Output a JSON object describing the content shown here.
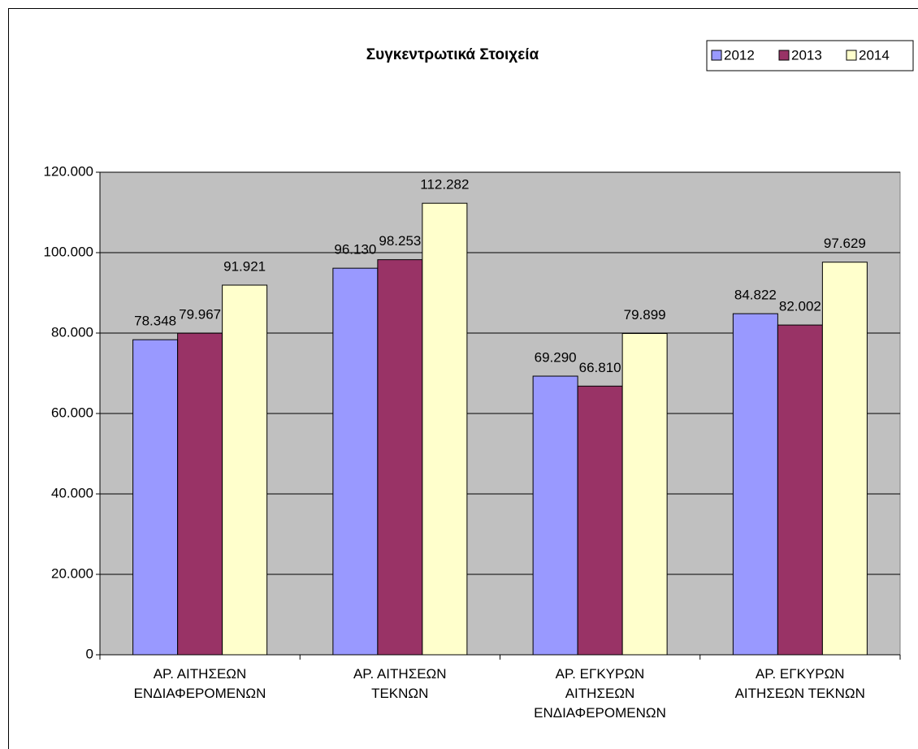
{
  "chart_data": {
    "type": "bar",
    "title": "Συγκεντρωτικά Στοιχεία",
    "categories": [
      "ΑΡ. ΑΙΤΗΣΕΩΝ\nΕΝΔΙΑΦΕΡΟΜΕΝΩΝ",
      "ΑΡ. ΑΙΤΗΣΕΩΝ\nΤΕΚΝΩΝ",
      "ΑΡ. ΕΓΚΥΡΩΝ\nΑΙΤΗΣΕΩΝ\nΕΝΔΙΑΦΕΡΟΜΕΝΩΝ",
      "ΑΡ. ΕΓΚΥΡΩΝ\nΑΙΤΗΣΕΩΝ ΤΕΚΝΩΝ"
    ],
    "series": [
      {
        "name": "2012",
        "color": "#9999ff",
        "values": [
          78348,
          96130,
          69290,
          84822
        ],
        "value_labels": [
          "78.348",
          "96.130",
          "69.290",
          "84.822"
        ]
      },
      {
        "name": "2013",
        "color": "#993366",
        "values": [
          79967,
          98253,
          66810,
          82002
        ],
        "value_labels": [
          "79.967",
          "98.253",
          "66.810",
          "82.002"
        ]
      },
      {
        "name": "2014",
        "color": "#ffffcc",
        "values": [
          91921,
          112282,
          79899,
          97629
        ],
        "value_labels": [
          "91.921",
          "112.282",
          "79.899",
          "97.629"
        ]
      }
    ],
    "ylim": [
      0,
      120000
    ],
    "yticks": [
      0,
      {
        "value": 20000,
        "label": "20.000"
      },
      {
        "value": 40000,
        "label": "40.000"
      },
      {
        "value": 60000,
        "label": "60.000"
      },
      {
        "value": 80000,
        "label": "80.000"
      },
      {
        "value": 100000,
        "label": "100.000"
      },
      {
        "value": 120000,
        "label": "120.000"
      }
    ],
    "grid": true,
    "legend": "top-right",
    "plot_background": "#c0c0c0"
  }
}
